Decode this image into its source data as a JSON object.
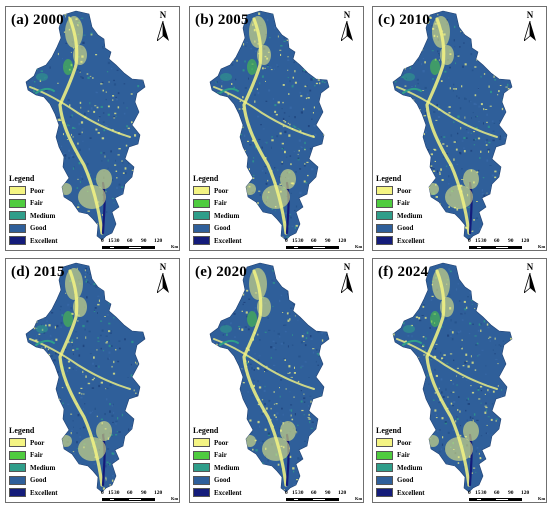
{
  "panels": [
    {
      "title": "(a) 2000"
    },
    {
      "title": "(b) 2005"
    },
    {
      "title": "(c) 2010"
    },
    {
      "title": "(d) 2015"
    },
    {
      "title": "(e) 2020"
    },
    {
      "title": "(f) 2024"
    }
  ],
  "north_label": "N",
  "legend": {
    "title": "Legend",
    "items": [
      {
        "label": "Poor",
        "color": "#f4f483"
      },
      {
        "label": "Fair",
        "color": "#4fcc3f"
      },
      {
        "label": "Medium",
        "color": "#2f9e8a"
      },
      {
        "label": "Good",
        "color": "#2f5f9a"
      },
      {
        "label": "Excellent",
        "color": "#141c7a"
      }
    ]
  },
  "scale_bar": {
    "ticks": [
      "0",
      "15",
      "30",
      "60",
      "90",
      "120"
    ],
    "unit": "Km"
  }
}
